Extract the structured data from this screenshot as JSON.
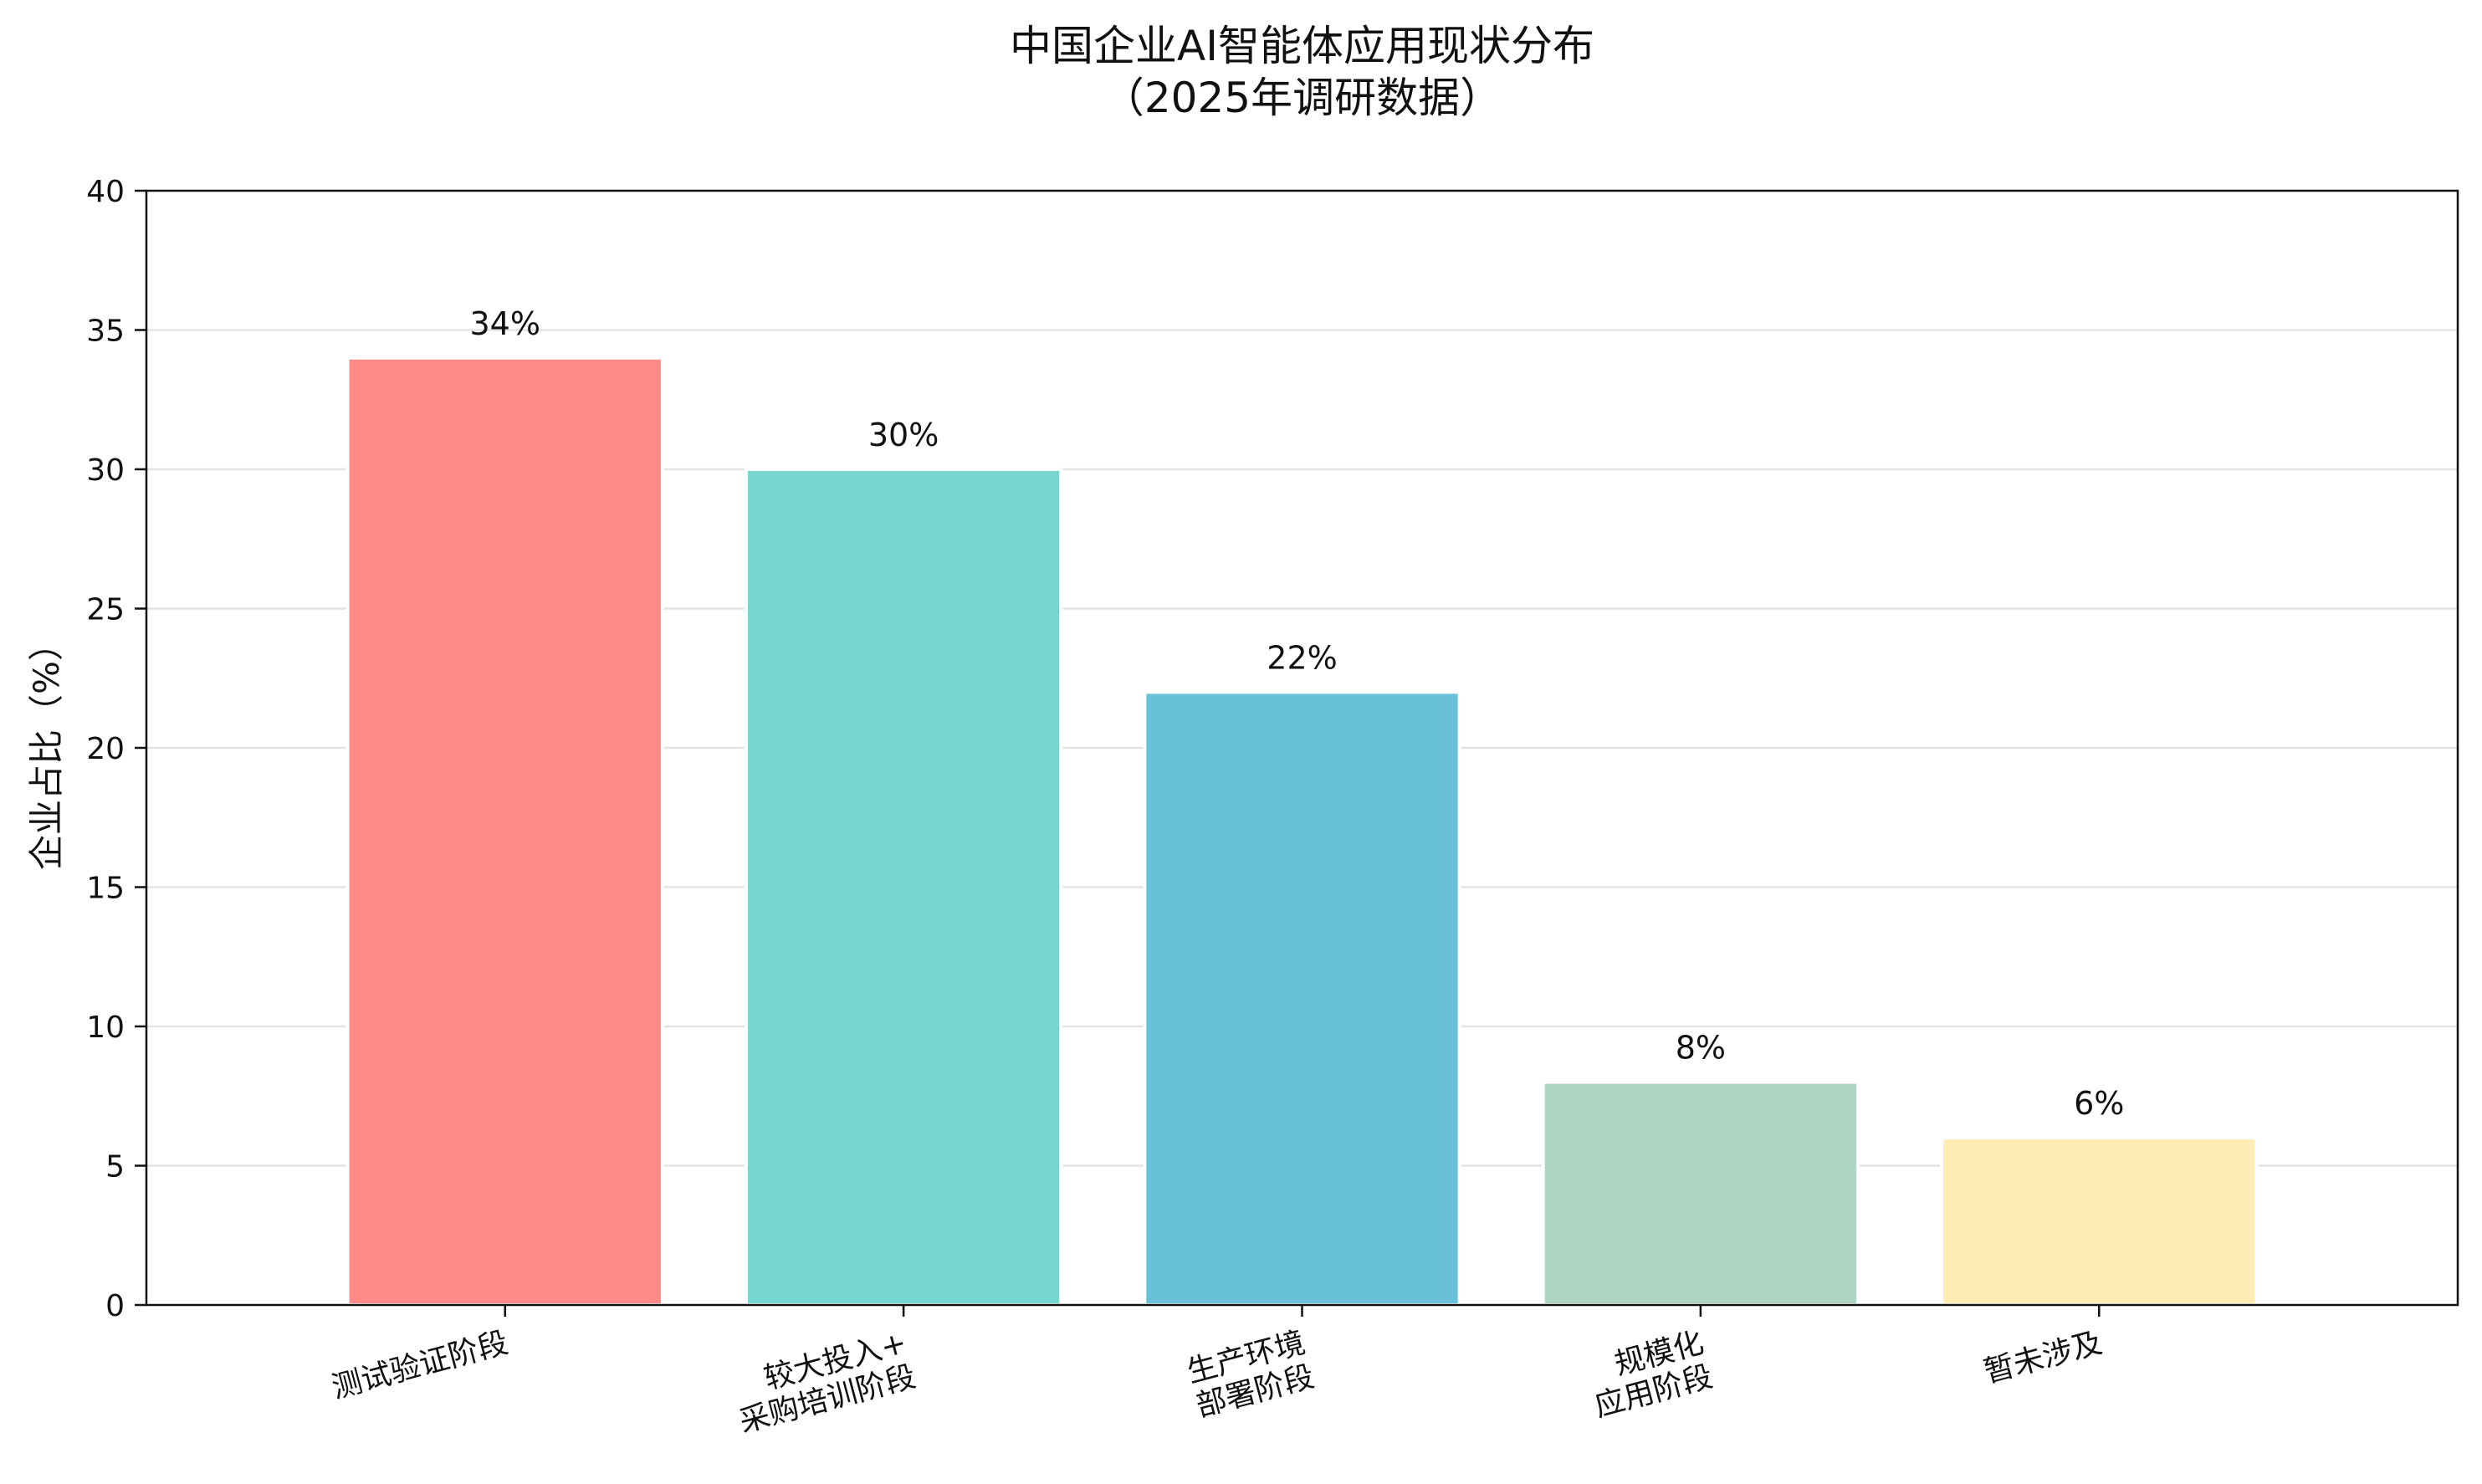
{
  "chart_data": {
    "type": "bar",
    "title_lines": [
      "中国企业AI智能体应用现状分布",
      "（2025年调研数据）"
    ],
    "xlabel": "",
    "ylabel": "企业占比（%）",
    "ylim": [
      0,
      40
    ],
    "yticks": [
      0,
      5,
      10,
      15,
      20,
      25,
      30,
      35,
      40
    ],
    "grid": "y",
    "categories": [
      [
        "测试验证阶段"
      ],
      [
        "较大投入+",
        "采购培训阶段"
      ],
      [
        "生产环境",
        "部署阶段"
      ],
      [
        "规模化",
        "应用阶段"
      ],
      [
        "暂未涉及"
      ]
    ],
    "values": [
      34,
      30,
      22,
      8,
      6
    ],
    "value_labels": [
      "34%",
      "30%",
      "22%",
      "8%",
      "6%"
    ],
    "colors": [
      "#ff8a88",
      "#74d6cf",
      "#69c1d9",
      "#acd6c1",
      "#ffebb4"
    ]
  }
}
